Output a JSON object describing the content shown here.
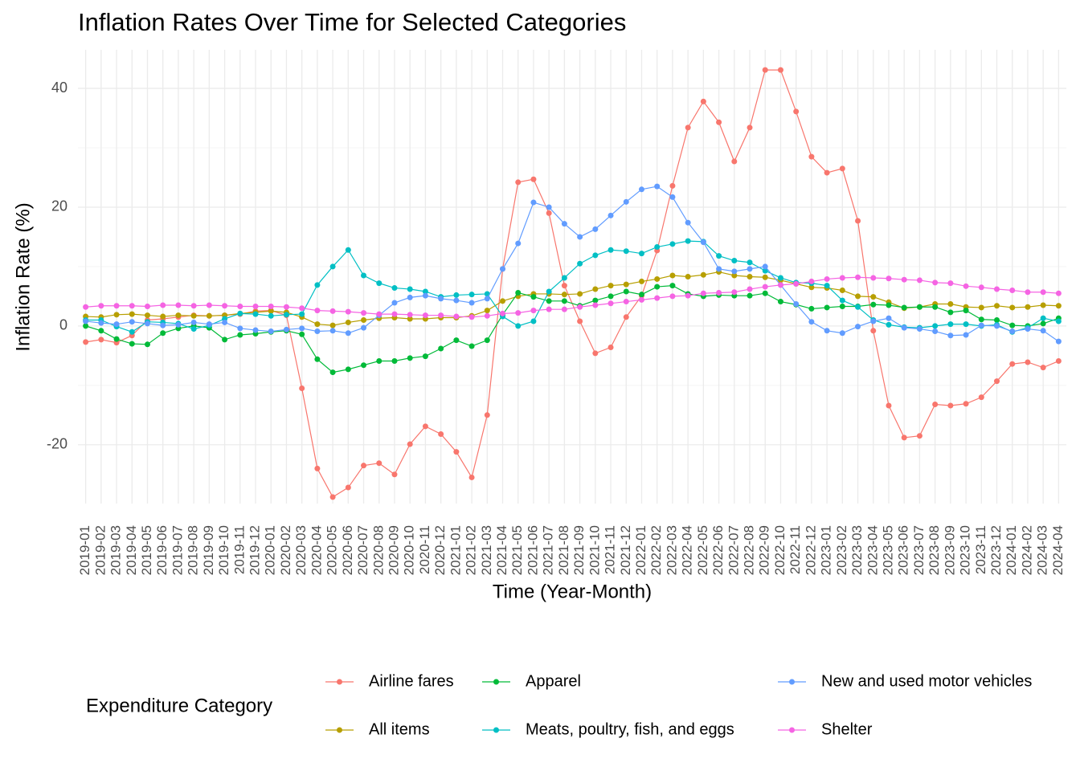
{
  "chart_data": {
    "type": "line",
    "title": "Inflation Rates Over Time for Selected Categories",
    "x_label": "Time (Year-Month)",
    "y_label": "Inflation Rate (%)",
    "legend_title": "Expenditure Category",
    "legend_position": "bottom",
    "grid": true,
    "categories": [
      "2019-01",
      "2019-02",
      "2019-03",
      "2019-04",
      "2019-05",
      "2019-06",
      "2019-07",
      "2019-08",
      "2019-09",
      "2019-10",
      "2019-11",
      "2019-12",
      "2020-01",
      "2020-02",
      "2020-03",
      "2020-04",
      "2020-05",
      "2020-06",
      "2020-07",
      "2020-08",
      "2020-09",
      "2020-10",
      "2020-11",
      "2020-12",
      "2021-01",
      "2021-02",
      "2021-03",
      "2021-04",
      "2021-05",
      "2021-06",
      "2021-07",
      "2021-08",
      "2021-09",
      "2021-10",
      "2021-11",
      "2021-12",
      "2022-01",
      "2022-02",
      "2022-03",
      "2022-04",
      "2022-05",
      "2022-06",
      "2022-07",
      "2022-08",
      "2022-09",
      "2022-10",
      "2022-11",
      "2022-12",
      "2023-01",
      "2023-02",
      "2023-03",
      "2023-04",
      "2023-05",
      "2023-06",
      "2023-07",
      "2023-08",
      "2023-09",
      "2023-10",
      "2023-11",
      "2023-12",
      "2024-01",
      "2024-02",
      "2024-03",
      "2024-04"
    ],
    "ylim": [
      -29.9,
      46.5
    ],
    "yticks": [
      -20,
      0,
      20,
      40
    ],
    "series": [
      {
        "name": "Airline fares",
        "color": "#F8766D",
        "values": [
          -2.7,
          -2.3,
          -2.8,
          -1.6,
          1.0,
          1.2,
          1.5,
          1.8,
          1.7,
          1.8,
          2.0,
          2.5,
          2.6,
          1.8,
          -10.5,
          -24.0,
          -28.8,
          -27.2,
          -23.5,
          -23.1,
          -25.0,
          -19.9,
          -16.9,
          -18.2,
          -21.2,
          -25.5,
          -15.0,
          9.6,
          24.2,
          24.7,
          19.0,
          6.8,
          0.8,
          -4.6,
          -3.6,
          1.5,
          5.1,
          12.7,
          23.6,
          33.4,
          37.8,
          34.3,
          27.7,
          33.4,
          43.1,
          43.1,
          36.1,
          28.5,
          25.8,
          26.5,
          17.7,
          -0.8,
          -13.4,
          -18.8,
          -18.5,
          -13.2,
          -13.4,
          -13.1,
          -12.0,
          -9.3,
          -6.4,
          -6.1,
          -7.0,
          -5.9
        ]
      },
      {
        "name": "All items",
        "color": "#B79F00",
        "values": [
          1.6,
          1.5,
          1.9,
          2.0,
          1.8,
          1.6,
          1.8,
          1.7,
          1.7,
          1.8,
          2.1,
          2.3,
          2.5,
          2.3,
          1.5,
          0.3,
          0.1,
          0.6,
          1.0,
          1.3,
          1.4,
          1.2,
          1.2,
          1.4,
          1.4,
          1.7,
          2.6,
          4.2,
          5.0,
          5.4,
          5.4,
          5.3,
          5.4,
          6.2,
          6.8,
          7.0,
          7.5,
          7.9,
          8.5,
          8.3,
          8.6,
          9.1,
          8.5,
          8.3,
          8.2,
          7.7,
          7.1,
          6.5,
          6.4,
          6.0,
          5.0,
          4.9,
          4.0,
          3.0,
          3.2,
          3.7,
          3.7,
          3.2,
          3.1,
          3.4,
          3.1,
          3.2,
          3.5,
          3.4
        ]
      },
      {
        "name": "Apparel",
        "color": "#00BA38",
        "values": [
          0.0,
          -0.8,
          -2.2,
          -3.0,
          -3.1,
          -1.2,
          -0.4,
          0.0,
          -0.3,
          -2.3,
          -1.5,
          -1.3,
          -1.0,
          -0.8,
          -1.4,
          -5.6,
          -7.8,
          -7.3,
          -6.6,
          -5.9,
          -5.9,
          -5.4,
          -5.1,
          -3.8,
          -2.4,
          -3.4,
          -2.4,
          1.9,
          5.6,
          4.9,
          4.2,
          4.2,
          3.4,
          4.3,
          5.0,
          5.8,
          5.3,
          6.6,
          6.8,
          5.4,
          5.0,
          5.2,
          5.1,
          5.1,
          5.5,
          4.1,
          3.6,
          2.9,
          3.1,
          3.3,
          3.3,
          3.6,
          3.5,
          3.1,
          3.2,
          3.2,
          2.3,
          2.6,
          1.1,
          1.0,
          0.1,
          0.0,
          0.4,
          1.3
        ]
      },
      {
        "name": "Meats, poultry, fish, and eggs",
        "color": "#00BFC4",
        "values": [
          1.0,
          1.0,
          -0.1,
          -1.0,
          0.7,
          0.6,
          0.4,
          -0.5,
          0.1,
          1.2,
          2.1,
          2.0,
          1.7,
          1.9,
          2.0,
          6.9,
          10.0,
          12.8,
          8.5,
          7.2,
          6.4,
          6.2,
          5.8,
          4.9,
          5.2,
          5.3,
          5.4,
          1.6,
          0.0,
          0.8,
          5.8,
          8.1,
          10.5,
          11.9,
          12.8,
          12.6,
          12.2,
          13.3,
          13.8,
          14.3,
          14.2,
          11.8,
          11.0,
          10.7,
          9.3,
          8.1,
          7.3,
          7.2,
          6.8,
          4.3,
          3.2,
          1.0,
          0.2,
          -0.2,
          -0.3,
          0.0,
          0.3,
          0.3,
          0.0,
          0.2,
          -1.0,
          -0.3,
          1.3,
          0.8
        ]
      },
      {
        "name": "New and used motor vehicles",
        "color": "#619CFF",
        "values": [
          0.8,
          0.5,
          0.3,
          0.7,
          0.4,
          0.1,
          0.2,
          0.6,
          0.3,
          0.6,
          -0.4,
          -0.7,
          -0.9,
          -0.6,
          -0.4,
          -0.9,
          -0.8,
          -1.2,
          -0.3,
          1.8,
          3.9,
          4.8,
          5.1,
          4.6,
          4.3,
          3.9,
          4.6,
          9.6,
          13.9,
          20.8,
          20.0,
          17.2,
          15.0,
          16.3,
          18.6,
          20.9,
          23.0,
          23.5,
          21.7,
          17.4,
          14.1,
          9.6,
          9.2,
          9.6,
          10.0,
          6.9,
          3.7,
          0.7,
          -0.8,
          -1.2,
          -0.1,
          0.8,
          1.3,
          -0.3,
          -0.5,
          -0.9,
          -1.6,
          -1.5,
          0.1,
          0.0,
          -0.9,
          -0.5,
          -0.8,
          -2.6
        ]
      },
      {
        "name": "Shelter",
        "color": "#F564E3",
        "values": [
          3.2,
          3.4,
          3.4,
          3.4,
          3.3,
          3.5,
          3.5,
          3.4,
          3.5,
          3.4,
          3.3,
          3.3,
          3.3,
          3.2,
          3.0,
          2.6,
          2.5,
          2.4,
          2.2,
          2.0,
          2.0,
          1.9,
          1.8,
          1.8,
          1.6,
          1.5,
          1.7,
          2.1,
          2.2,
          2.6,
          2.8,
          2.8,
          3.2,
          3.5,
          3.8,
          4.1,
          4.4,
          4.7,
          5.0,
          5.1,
          5.5,
          5.6,
          5.7,
          6.2,
          6.6,
          6.9,
          7.1,
          7.5,
          7.9,
          8.1,
          8.2,
          8.1,
          8.0,
          7.8,
          7.7,
          7.3,
          7.2,
          6.7,
          6.5,
          6.2,
          6.0,
          5.7,
          5.7,
          5.5
        ]
      }
    ]
  }
}
